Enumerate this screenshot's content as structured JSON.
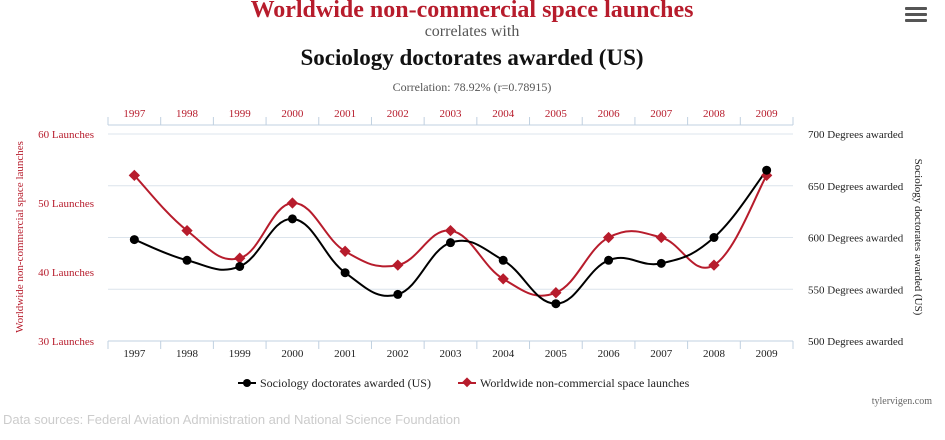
{
  "header": {
    "title_line1": "Worldwide non-commercial space launches",
    "title_line2": "correlates with",
    "title_line3": "Sociology doctorates awarded (US)",
    "correlation": "Correlation: 78.92% (r=0.78915)"
  },
  "menu": {
    "icon": "hamburger-menu-icon"
  },
  "footer": {
    "credit": "tylervigen.com",
    "sources": "Data sources: Federal Aviation Administration and National Science Foundation"
  },
  "colors": {
    "red": "#b71c2c",
    "black": "#000000",
    "grid": "#dce4ec",
    "axis": "#c0d0e0",
    "gray": "#555555"
  },
  "chart_data": {
    "type": "line",
    "categories": [
      "1997",
      "1998",
      "1999",
      "2000",
      "2001",
      "2002",
      "2003",
      "2004",
      "2005",
      "2006",
      "2007",
      "2008",
      "2009"
    ],
    "series": [
      {
        "name": "Sociology doctorates awarded (US)",
        "axis": "right",
        "values": [
          598,
          578,
          572,
          618,
          566,
          545,
          595,
          578,
          536,
          578,
          575,
          600,
          665
        ]
      },
      {
        "name": "Worldwide non-commercial space launches",
        "axis": "left",
        "values": [
          54,
          46,
          42,
          50,
          43,
          41,
          46,
          39,
          37,
          45,
          45,
          41,
          54
        ]
      }
    ],
    "left_axis": {
      "label": "Worldwide non-commercial space launches",
      "min": 30,
      "max": 60,
      "ticks": [
        "30 Launches",
        "40 Launches",
        "50 Launches",
        "60 Launches"
      ]
    },
    "right_axis": {
      "label": "Sociology doctorates awarded (US)",
      "min": 500,
      "max": 700,
      "ticks": [
        "500 Degrees awarded",
        "550 Degrees awarded",
        "600 Degrees awarded",
        "650 Degrees awarded",
        "700 Degrees awarded"
      ]
    },
    "legend_position": "bottom-center"
  }
}
